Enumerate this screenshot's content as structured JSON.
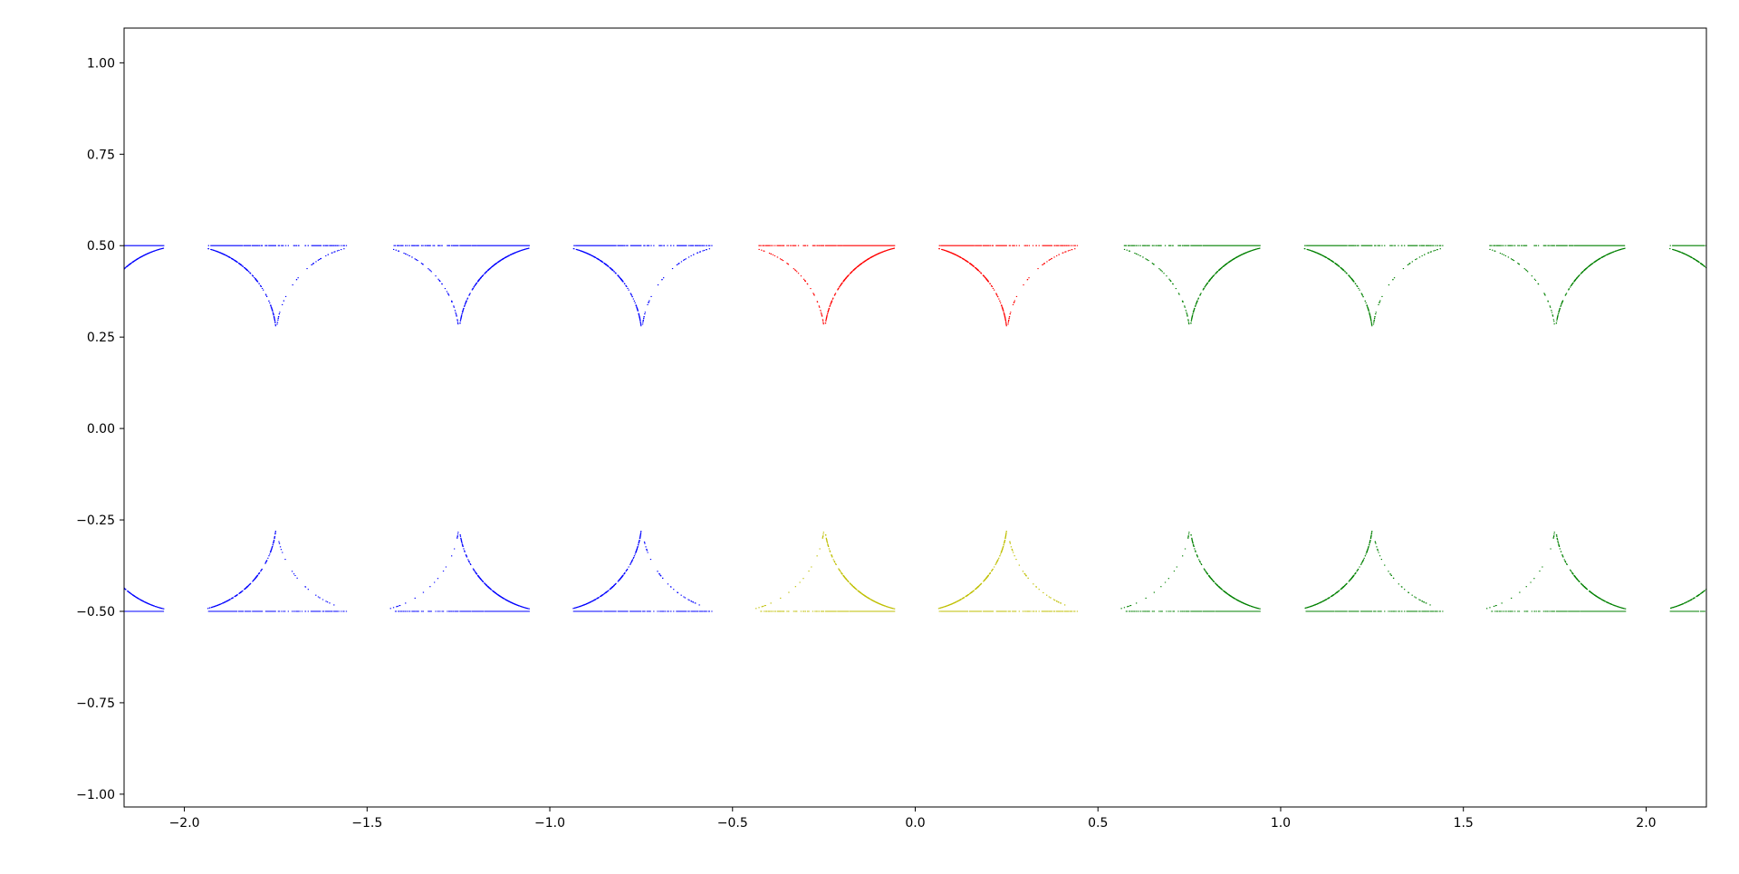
{
  "chart_data": {
    "type": "scatter",
    "title": "",
    "xlabel": "",
    "ylabel": "",
    "xlim": [
      -2.165,
      2.165
    ],
    "ylim": [
      -1.035,
      1.095
    ],
    "x_ticks": [
      -2.0,
      -1.5,
      -1.0,
      -0.5,
      0.0,
      0.5,
      1.0,
      1.5,
      2.0
    ],
    "x_tick_labels": [
      "−2.0",
      "−1.5",
      "−1.0",
      "−0.5",
      "0.0",
      "0.5",
      "1.0",
      "1.5",
      "2.0"
    ],
    "y_ticks": [
      1.0,
      0.75,
      0.5,
      0.25,
      0.0,
      -0.25,
      -0.5,
      -0.75,
      -1.0
    ],
    "y_tick_labels": [
      "1.00",
      "0.75",
      "0.50",
      "0.25",
      "0.00",
      "−0.25",
      "−0.50",
      "−0.75",
      "−1.00"
    ],
    "grid": false,
    "legend": "none",
    "description_of_pattern": "fractal Apollonian gasket bands spanning y from -0.5 to 0.5, repeated with period 1.0 along x",
    "series": [
      {
        "center_x": -2.0,
        "upper_color": "#0000ff",
        "lower_color": "#0000ff",
        "density": 0.35
      },
      {
        "center_x": -1.0,
        "upper_color": "#0000ff",
        "lower_color": "#0000ff",
        "density": 0.8
      },
      {
        "center_x": 0.0,
        "upper_color": "#ff0000",
        "lower_color": "#bfbf00",
        "density": 0.8
      },
      {
        "center_x": 1.0,
        "upper_color": "#008000",
        "lower_color": "#008000",
        "density": 0.8
      },
      {
        "center_x": 2.0,
        "upper_color": "#008000",
        "lower_color": "#008000",
        "density": 0.35
      }
    ]
  }
}
